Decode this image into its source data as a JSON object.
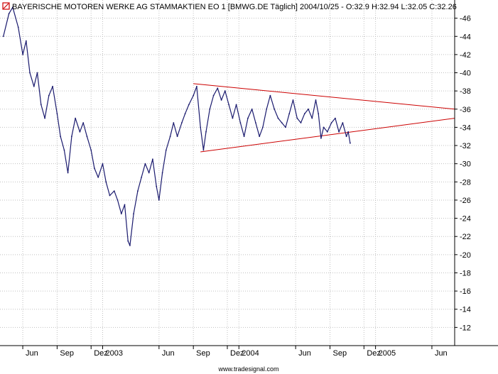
{
  "chart_data": {
    "type": "line",
    "title": "BAYERISCHE MOTOREN WERKE AG STAMMAKTIEN EO 1 [BMWG.DE  Täglich] 2004/10/25 - O:32.9 H:32.94 L:32.05 C:32.26",
    "xlabel": "",
    "ylabel": "",
    "ylim": [
      10,
      48
    ],
    "xlim": [
      "2002-04-01",
      "2005-08-01"
    ],
    "y_ticks": [
      12,
      14,
      16,
      18,
      20,
      22,
      24,
      26,
      28,
      30,
      32,
      34,
      36,
      38,
      40,
      42,
      44,
      46
    ],
    "x_ticks": [
      {
        "label": "Jun",
        "date": "2002-06-01"
      },
      {
        "label": "Sep",
        "date": "2002-09-01"
      },
      {
        "label": "Dez",
        "date": "2002-12-01"
      },
      {
        "label": "2003",
        "date": "2003-01-01"
      },
      {
        "label": "Jun",
        "date": "2003-06-01"
      },
      {
        "label": "Sep",
        "date": "2003-09-01"
      },
      {
        "label": "Dez",
        "date": "2003-12-01"
      },
      {
        "label": "2004",
        "date": "2004-01-01"
      },
      {
        "label": "Jun",
        "date": "2004-06-01"
      },
      {
        "label": "Sep",
        "date": "2004-09-01"
      },
      {
        "label": "Dez",
        "date": "2004-12-01"
      },
      {
        "label": "2005",
        "date": "2005-01-01"
      },
      {
        "label": "Jun",
        "date": "2005-06-01"
      }
    ],
    "grid": true,
    "series": [
      {
        "color": "#1a1a6e",
        "points": [
          [
            "2002-04-10",
            44.0
          ],
          [
            "2002-04-25",
            46.5
          ],
          [
            "2002-05-05",
            47.2
          ],
          [
            "2002-05-20",
            45.0
          ],
          [
            "2002-06-01",
            42.0
          ],
          [
            "2002-06-10",
            43.5
          ],
          [
            "2002-06-20",
            40.0
          ],
          [
            "2002-07-01",
            38.5
          ],
          [
            "2002-07-10",
            40.0
          ],
          [
            "2002-07-20",
            36.5
          ],
          [
            "2002-07-30",
            35.0
          ],
          [
            "2002-08-10",
            37.5
          ],
          [
            "2002-08-20",
            38.5
          ],
          [
            "2002-09-01",
            35.5
          ],
          [
            "2002-09-10",
            33.0
          ],
          [
            "2002-09-20",
            31.5
          ],
          [
            "2002-09-30",
            29.0
          ],
          [
            "2002-10-10",
            33.0
          ],
          [
            "2002-10-20",
            35.0
          ],
          [
            "2002-11-01",
            33.5
          ],
          [
            "2002-11-10",
            34.5
          ],
          [
            "2002-11-20",
            33.0
          ],
          [
            "2002-12-01",
            31.5
          ],
          [
            "2002-12-10",
            29.5
          ],
          [
            "2002-12-20",
            28.5
          ],
          [
            "2003-01-01",
            30.0
          ],
          [
            "2003-01-10",
            28.0
          ],
          [
            "2003-01-20",
            26.5
          ],
          [
            "2003-02-01",
            27.0
          ],
          [
            "2003-02-10",
            26.0
          ],
          [
            "2003-02-20",
            24.5
          ],
          [
            "2003-03-01",
            25.5
          ],
          [
            "2003-03-10",
            21.5
          ],
          [
            "2003-03-15",
            21.0
          ],
          [
            "2003-03-25",
            24.5
          ],
          [
            "2003-04-05",
            27.0
          ],
          [
            "2003-04-15",
            28.5
          ],
          [
            "2003-04-25",
            30.0
          ],
          [
            "2003-05-05",
            29.0
          ],
          [
            "2003-05-15",
            30.5
          ],
          [
            "2003-05-25",
            27.5
          ],
          [
            "2003-06-01",
            26.0
          ],
          [
            "2003-06-10",
            29.0
          ],
          [
            "2003-06-20",
            31.5
          ],
          [
            "2003-07-01",
            33.0
          ],
          [
            "2003-07-10",
            34.5
          ],
          [
            "2003-07-20",
            33.0
          ],
          [
            "2003-08-01",
            34.5
          ],
          [
            "2003-08-10",
            35.5
          ],
          [
            "2003-08-20",
            36.5
          ],
          [
            "2003-09-01",
            37.5
          ],
          [
            "2003-09-10",
            38.5
          ],
          [
            "2003-09-20",
            34.0
          ],
          [
            "2003-09-28",
            31.5
          ],
          [
            "2003-10-05",
            33.5
          ],
          [
            "2003-10-15",
            36.0
          ],
          [
            "2003-10-25",
            37.5
          ],
          [
            "2003-11-05",
            38.3
          ],
          [
            "2003-11-15",
            37.0
          ],
          [
            "2003-11-25",
            38.0
          ],
          [
            "2003-12-05",
            36.5
          ],
          [
            "2003-12-15",
            35.0
          ],
          [
            "2003-12-25",
            36.5
          ],
          [
            "2004-01-05",
            34.5
          ],
          [
            "2004-01-15",
            33.0
          ],
          [
            "2004-01-25",
            35.0
          ],
          [
            "2004-02-05",
            36.0
          ],
          [
            "2004-02-15",
            34.5
          ],
          [
            "2004-02-25",
            33.0
          ],
          [
            "2004-03-05",
            34.0
          ],
          [
            "2004-03-15",
            36.0
          ],
          [
            "2004-03-25",
            37.5
          ],
          [
            "2004-04-05",
            36.0
          ],
          [
            "2004-04-15",
            35.0
          ],
          [
            "2004-04-25",
            34.5
          ],
          [
            "2004-05-05",
            34.0
          ],
          [
            "2004-05-15",
            35.5
          ],
          [
            "2004-05-25",
            37.0
          ],
          [
            "2004-06-05",
            35.0
          ],
          [
            "2004-06-15",
            34.5
          ],
          [
            "2004-06-25",
            35.5
          ],
          [
            "2004-07-05",
            36.0
          ],
          [
            "2004-07-15",
            35.0
          ],
          [
            "2004-07-25",
            37.0
          ],
          [
            "2004-08-01",
            35.5
          ],
          [
            "2004-08-08",
            32.8
          ],
          [
            "2004-08-15",
            34.0
          ],
          [
            "2004-08-25",
            33.5
          ],
          [
            "2004-09-05",
            34.5
          ],
          [
            "2004-09-15",
            35.0
          ],
          [
            "2004-09-25",
            33.5
          ],
          [
            "2004-10-05",
            34.5
          ],
          [
            "2004-10-15",
            33.0
          ],
          [
            "2004-10-20",
            33.5
          ],
          [
            "2004-10-25",
            32.26
          ]
        ]
      }
    ],
    "trendlines": [
      {
        "name": "upper",
        "color": "#cc0000",
        "from": [
          "2003-09-01",
          38.8
        ],
        "to": [
          "2005-08-01",
          36.0
        ]
      },
      {
        "name": "lower",
        "color": "#cc0000",
        "from": [
          "2003-09-20",
          31.3
        ],
        "to": [
          "2005-08-01",
          35.0
        ]
      }
    ]
  },
  "footer": {
    "watermark": "www.tradesignal.com"
  },
  "colors": {
    "background": "#ffffff",
    "grid": "#c0c0c0",
    "series": "#1a1a6e",
    "trendline": "#cc0000",
    "title_icon": "#cc0000"
  }
}
